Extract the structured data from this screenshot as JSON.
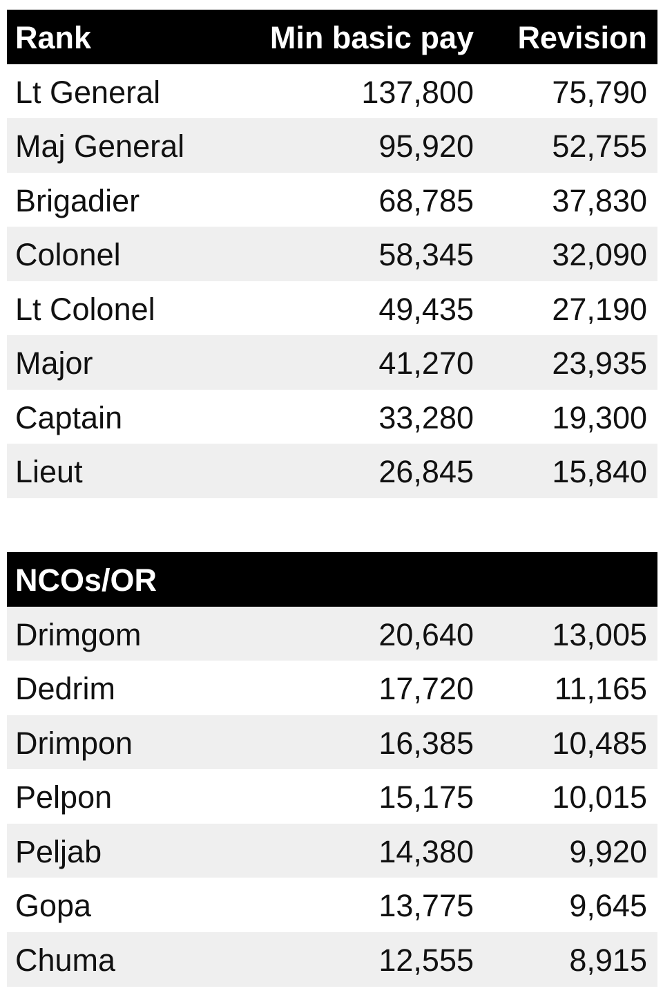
{
  "officers": {
    "header": [
      "Rank",
      "Min basic pay",
      "Revision"
    ],
    "rows": [
      [
        "Lt General",
        "137,800",
        "75,790"
      ],
      [
        "Maj General",
        "95,920",
        "52,755"
      ],
      [
        "Brigadier",
        "68,785",
        "37,830"
      ],
      [
        "Colonel",
        "58,345",
        "32,090"
      ],
      [
        "Lt Colonel",
        "49,435",
        "27,190"
      ],
      [
        "Major",
        "41,270",
        "23,935"
      ],
      [
        "Captain",
        "33,280",
        "19,300"
      ],
      [
        "Lieut",
        "26,845",
        "15,840"
      ]
    ]
  },
  "ncos": {
    "header": "NCOs/OR",
    "rows": [
      [
        "Drimgom",
        "20,640",
        "13,005"
      ],
      [
        "Dedrim",
        "17,720",
        "11,165"
      ],
      [
        "Drimpon",
        "16,385",
        "10,485"
      ],
      [
        "Pelpon",
        "15,175",
        "10,015"
      ],
      [
        "Peljab",
        "14,380",
        "9,920"
      ],
      [
        "Gopa",
        "13,775",
        "9,645"
      ],
      [
        "Chuma",
        "12,555",
        "8,915"
      ]
    ]
  }
}
